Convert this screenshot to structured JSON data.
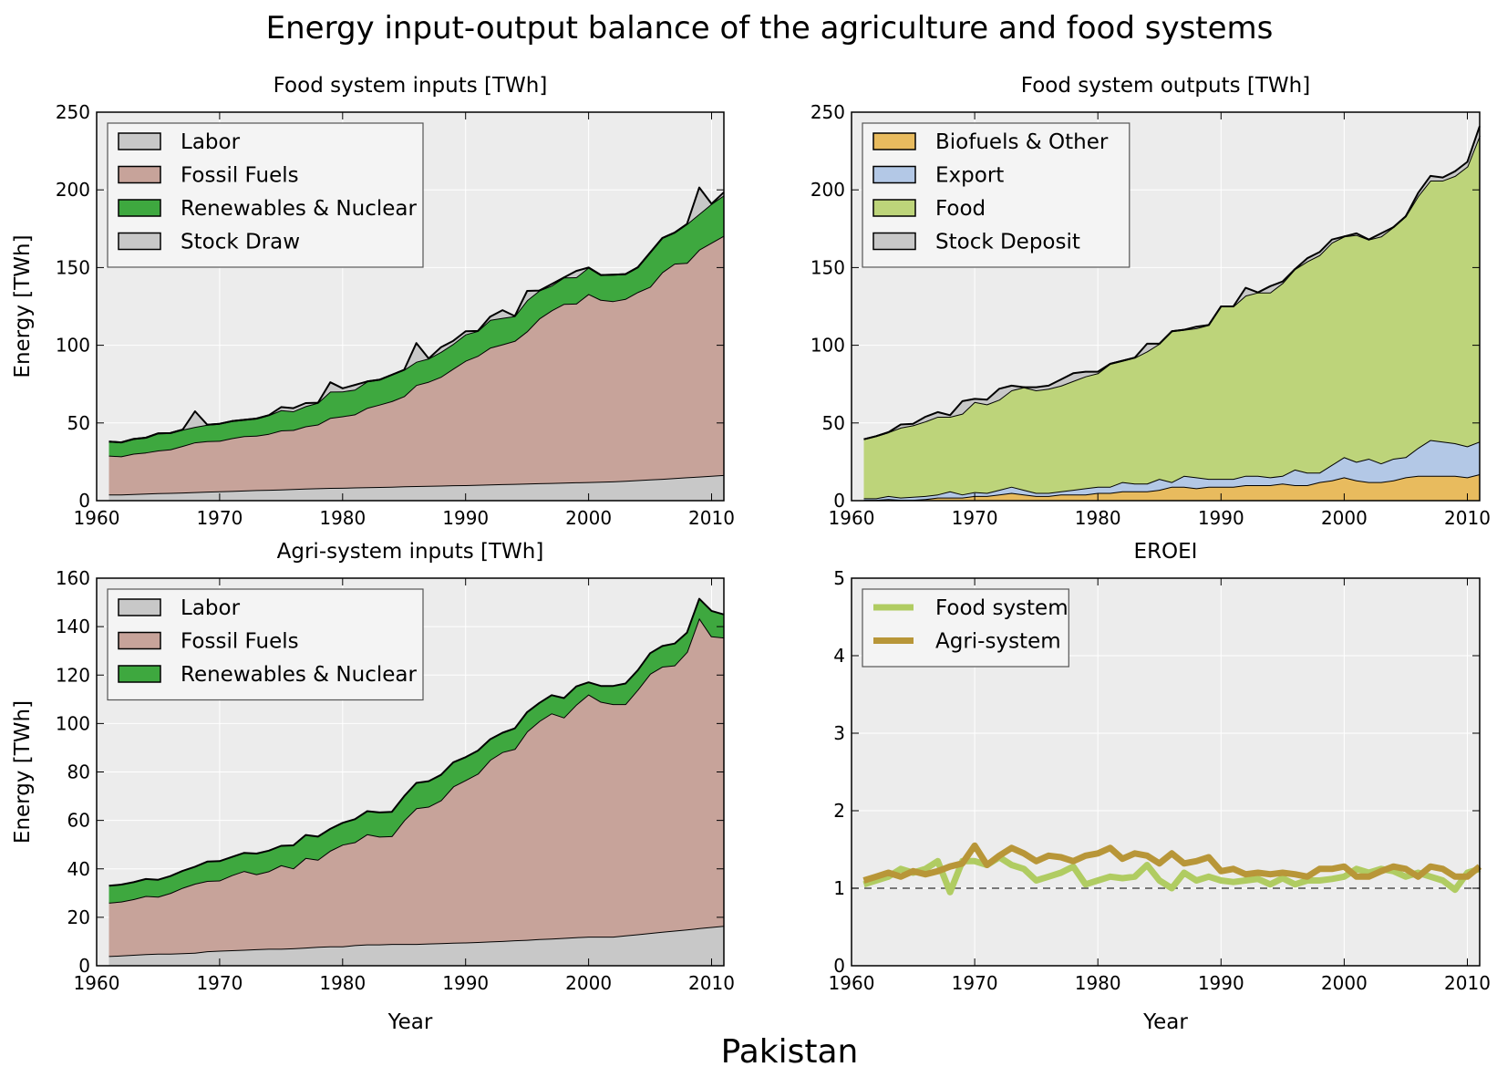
{
  "figure": {
    "title": "Energy input-output balance of the agriculture and food systems",
    "country": "Pakistan"
  },
  "colors": {
    "labor": "#c8c8c8",
    "fossil": "#c7a39a",
    "renew": "#3ea83f",
    "stock": "#c8c8c8",
    "biofuel": "#e8bb5e",
    "export": "#b3c8e6",
    "food": "#bdd47a",
    "eroei_food": "#b0cc62",
    "eroei_agri": "#b89638",
    "axes_bg": "#ececec"
  },
  "chart_data": [
    {
      "type": "area",
      "title": "Food system inputs [TWh]",
      "xlabel": "",
      "ylabel": "Energy [TWh]",
      "xlim": [
        1960,
        2011
      ],
      "ylim": [
        0,
        250
      ],
      "xticks": [
        1960,
        1970,
        1980,
        1990,
        2000,
        2010
      ],
      "yticks": [
        0,
        50,
        100,
        150,
        200,
        250
      ],
      "grid": true,
      "stacked": true,
      "legend_position": "top-left",
      "x": [
        1961,
        1962,
        1963,
        1964,
        1965,
        1966,
        1967,
        1968,
        1969,
        1970,
        1971,
        1972,
        1973,
        1974,
        1975,
        1976,
        1977,
        1978,
        1979,
        1980,
        1981,
        1982,
        1983,
        1984,
        1985,
        1986,
        1987,
        1988,
        1989,
        1990,
        1991,
        1992,
        1993,
        1994,
        1995,
        1996,
        1997,
        1998,
        1999,
        2000,
        2001,
        2002,
        2003,
        2004,
        2005,
        2006,
        2007,
        2008,
        2009,
        2010,
        2011
      ],
      "series": [
        {
          "name": "Labor",
          "color_key": "labor",
          "values": [
            4,
            4,
            4.2,
            4.5,
            4.8,
            5,
            5.2,
            5.5,
            5.8,
            6,
            6.2,
            6.5,
            6.8,
            7,
            7.2,
            7.5,
            7.8,
            8,
            8.2,
            8.3,
            8.5,
            8.7,
            8.8,
            9,
            9.2,
            9.4,
            9.5,
            9.7,
            9.9,
            10,
            10.2,
            10.4,
            10.6,
            10.8,
            11,
            11.2,
            11.4,
            11.6,
            11.8,
            12,
            12.2,
            12.4,
            12.8,
            13.2,
            13.6,
            14,
            14.5,
            15,
            15.5,
            16,
            16.5
          ]
        },
        {
          "name": "Fossil Fuels",
          "color_key": "fossil",
          "values": [
            25,
            24.5,
            26,
            26.5,
            27.5,
            28,
            30,
            32,
            32.5,
            32.5,
            34,
            35,
            35,
            36,
            38,
            38,
            40,
            41,
            45,
            46,
            47,
            51,
            53,
            55,
            58,
            65,
            67,
            70,
            75,
            80,
            83,
            88,
            90,
            92,
            98,
            106,
            111,
            115,
            115,
            121,
            117,
            116,
            117,
            121,
            124,
            133,
            138,
            138,
            146,
            150,
            154
          ]
        },
        {
          "name": "Renewables & Nuclear",
          "color_key": "renew",
          "values": [
            9,
            9,
            9.5,
            9.5,
            11,
            10.5,
            10.5,
            10,
            10.5,
            11,
            11,
            10.5,
            11,
            12,
            13,
            12,
            13,
            14,
            17,
            16,
            16,
            17,
            16,
            17,
            17,
            15,
            15,
            16,
            16,
            17,
            16,
            18,
            17,
            16,
            20,
            18,
            16,
            17,
            17,
            17,
            16,
            17,
            16,
            16,
            22,
            22,
            20,
            25,
            23,
            25,
            26
          ]
        },
        {
          "name": "Stock Draw",
          "color_key": "stock",
          "values": [
            0,
            0,
            0,
            0,
            0,
            0,
            0,
            10,
            0,
            0,
            0,
            0,
            0,
            0,
            2,
            2,
            2,
            0,
            6,
            2,
            3,
            0,
            0,
            0,
            0,
            12,
            0,
            3,
            2,
            2,
            0,
            2,
            5,
            0,
            6,
            0,
            1,
            0,
            4,
            0,
            0,
            0,
            0,
            0,
            0,
            0,
            0,
            0,
            17,
            0,
            2
          ]
        }
      ]
    },
    {
      "type": "area",
      "title": "Food system outputs [TWh]",
      "xlabel": "",
      "ylabel": "",
      "xlim": [
        1960,
        2011
      ],
      "ylim": [
        0,
        250
      ],
      "xticks": [
        1960,
        1970,
        1980,
        1990,
        2000,
        2010
      ],
      "yticks": [
        0,
        50,
        100,
        150,
        200,
        250
      ],
      "grid": true,
      "stacked": true,
      "legend_position": "top-left",
      "x": [
        1961,
        1962,
        1963,
        1964,
        1965,
        1966,
        1967,
        1968,
        1969,
        1970,
        1971,
        1972,
        1973,
        1974,
        1975,
        1976,
        1977,
        1978,
        1979,
        1980,
        1981,
        1982,
        1983,
        1984,
        1985,
        1986,
        1987,
        1988,
        1989,
        1990,
        1991,
        1992,
        1993,
        1994,
        1995,
        1996,
        1997,
        1998,
        1999,
        2000,
        2001,
        2002,
        2003,
        2004,
        2005,
        2006,
        2007,
        2008,
        2009,
        2010,
        2011
      ],
      "series": [
        {
          "name": "Biofuels & Other",
          "color_key": "biofuel",
          "values": [
            0.5,
            0.5,
            1,
            0.5,
            0.5,
            1,
            2,
            2,
            2,
            3,
            3,
            4,
            5,
            4,
            3,
            3,
            4,
            4,
            4,
            5,
            5,
            6,
            6,
            6,
            7,
            9,
            9,
            8,
            9,
            9,
            9,
            10,
            10,
            10,
            11,
            10,
            10,
            12,
            13,
            15,
            13,
            12,
            12,
            13,
            15,
            16,
            16,
            16,
            16,
            15,
            17
          ]
        },
        {
          "name": "Export",
          "color_key": "export",
          "values": [
            1,
            1,
            2,
            1.5,
            2,
            2,
            2,
            4,
            2,
            2.5,
            2,
            3,
            4,
            3,
            2,
            2,
            2,
            3,
            4,
            4,
            4,
            6,
            5,
            5,
            7,
            3,
            7,
            7,
            5,
            5,
            5,
            6,
            6,
            5,
            5,
            10,
            8,
            6,
            10,
            13,
            12,
            15,
            12,
            14,
            13,
            18,
            23,
            22,
            21,
            20,
            21
          ]
        },
        {
          "name": "Food",
          "color_key": "food",
          "values": [
            38,
            40,
            41,
            45,
            46,
            48,
            50,
            48,
            52,
            58,
            57,
            58,
            62,
            66,
            66,
            67,
            68,
            70,
            72,
            73,
            79,
            78,
            81,
            85,
            87,
            97,
            94,
            96,
            99,
            111,
            111,
            116,
            118,
            119,
            124,
            129,
            136,
            140,
            143,
            142,
            146,
            141,
            146,
            149,
            155,
            162,
            167,
            168,
            172,
            180,
            197
          ]
        },
        {
          "name": "Stock Deposit",
          "color_key": "stock",
          "values": [
            0,
            0,
            0,
            2,
            1,
            3,
            3,
            1,
            8,
            2,
            3,
            7,
            3,
            0,
            2,
            2,
            4,
            5,
            3,
            1,
            0,
            0,
            0,
            5,
            0,
            0,
            0,
            1,
            0,
            0,
            0,
            5,
            0,
            4,
            1,
            0,
            2,
            2,
            2,
            0,
            1,
            0,
            2,
            0,
            0,
            2,
            3,
            2,
            3,
            3,
            6
          ]
        }
      ]
    },
    {
      "type": "area",
      "title": "Agri-system inputs [TWh]",
      "xlabel": "Year",
      "ylabel": "Energy [TWh]",
      "xlim": [
        1960,
        2011
      ],
      "ylim": [
        0,
        160
      ],
      "xticks": [
        1960,
        1970,
        1980,
        1990,
        2000,
        2010
      ],
      "yticks": [
        0,
        20,
        40,
        60,
        80,
        100,
        120,
        140,
        160
      ],
      "grid": true,
      "stacked": true,
      "legend_position": "top-left",
      "x": [
        1961,
        1962,
        1963,
        1964,
        1965,
        1966,
        1967,
        1968,
        1969,
        1970,
        1971,
        1972,
        1973,
        1974,
        1975,
        1976,
        1977,
        1978,
        1979,
        1980,
        1981,
        1982,
        1983,
        1984,
        1985,
        1986,
        1987,
        1988,
        1989,
        1990,
        1991,
        1992,
        1993,
        1994,
        1995,
        1996,
        1997,
        1998,
        1999,
        2000,
        2001,
        2002,
        2003,
        2004,
        2005,
        2006,
        2007,
        2008,
        2009,
        2010,
        2011
      ],
      "series": [
        {
          "name": "Labor",
          "color_key": "labor",
          "values": [
            4,
            4.2,
            4.5,
            4.8,
            5,
            5,
            5.2,
            5.4,
            6,
            6.2,
            6.4,
            6.6,
            6.8,
            7,
            7,
            7.2,
            7.5,
            7.8,
            8,
            8,
            8.5,
            8.8,
            8.8,
            9,
            9,
            9,
            9.2,
            9.3,
            9.5,
            9.6,
            9.8,
            10,
            10.2,
            10.5,
            10.7,
            11,
            11.2,
            11.5,
            11.8,
            12,
            12,
            12,
            12.5,
            13,
            13.5,
            14,
            14.5,
            15,
            15.5,
            16,
            16.5
          ]
        },
        {
          "name": "Fossil Fuels",
          "color_key": "fossil",
          "values": [
            22,
            22.3,
            23,
            24,
            23.5,
            25,
            27,
            28.5,
            29,
            29,
            31,
            32.5,
            31,
            32,
            34.5,
            33,
            37,
            36,
            39.5,
            42,
            42.5,
            45.5,
            44.5,
            44.5,
            51,
            56,
            56.5,
            59,
            64.5,
            67,
            69.5,
            75,
            78,
            79,
            86,
            90,
            93,
            91,
            96,
            100,
            97,
            96,
            95.5,
            101,
            107,
            109.5,
            109.5,
            114.5,
            128,
            120,
            119
          ]
        },
        {
          "name": "Renewables & Nuclear",
          "color_key": "renew",
          "values": [
            7,
            7,
            7,
            7,
            7,
            7,
            7,
            7,
            8,
            8,
            7.5,
            7.5,
            8.5,
            8.5,
            8,
            9.5,
            9.5,
            9.5,
            9,
            9,
            9.5,
            9.5,
            10,
            10,
            10,
            10.5,
            10.5,
            10.5,
            10,
            9.5,
            9.5,
            8.5,
            8,
            8.5,
            8,
            7.5,
            7.5,
            8,
            7.5,
            5,
            6.5,
            7.5,
            8.5,
            8,
            8.5,
            8.5,
            9,
            8,
            8,
            10.5,
            9.5
          ]
        }
      ]
    },
    {
      "type": "line",
      "title": "EROEI",
      "xlabel": "Year",
      "ylabel": "",
      "xlim": [
        1960,
        2011
      ],
      "ylim": [
        0,
        5
      ],
      "xticks": [
        1960,
        1970,
        1980,
        1990,
        2000,
        2010
      ],
      "yticks": [
        0,
        1,
        2,
        3,
        4,
        5
      ],
      "grid": true,
      "legend_position": "top-left",
      "reference_line": 1,
      "x": [
        1961,
        1962,
        1963,
        1964,
        1965,
        1966,
        1967,
        1968,
        1969,
        1970,
        1971,
        1972,
        1973,
        1974,
        1975,
        1976,
        1977,
        1978,
        1979,
        1980,
        1981,
        1982,
        1983,
        1984,
        1985,
        1986,
        1987,
        1988,
        1989,
        1990,
        1991,
        1992,
        1993,
        1994,
        1995,
        1996,
        1997,
        1998,
        1999,
        2000,
        2001,
        2002,
        2003,
        2004,
        2005,
        2006,
        2007,
        2008,
        2009,
        2010,
        2011
      ],
      "series": [
        {
          "name": "Food system",
          "color_key": "eroei_food",
          "values": [
            1.05,
            1.1,
            1.15,
            1.25,
            1.2,
            1.25,
            1.35,
            0.95,
            1.35,
            1.35,
            1.3,
            1.4,
            1.3,
            1.25,
            1.1,
            1.15,
            1.2,
            1.28,
            1.05,
            1.1,
            1.15,
            1.13,
            1.15,
            1.3,
            1.1,
            1.0,
            1.2,
            1.1,
            1.15,
            1.1,
            1.08,
            1.1,
            1.12,
            1.05,
            1.13,
            1.05,
            1.1,
            1.1,
            1.12,
            1.15,
            1.25,
            1.2,
            1.25,
            1.22,
            1.15,
            1.2,
            1.15,
            1.1,
            0.98,
            1.2,
            1.25
          ]
        },
        {
          "name": "Agri-system",
          "color_key": "eroei_agri",
          "values": [
            1.1,
            1.15,
            1.2,
            1.15,
            1.22,
            1.18,
            1.22,
            1.28,
            1.32,
            1.55,
            1.3,
            1.42,
            1.52,
            1.45,
            1.35,
            1.42,
            1.4,
            1.35,
            1.42,
            1.45,
            1.52,
            1.38,
            1.45,
            1.42,
            1.32,
            1.45,
            1.32,
            1.35,
            1.4,
            1.22,
            1.25,
            1.18,
            1.2,
            1.18,
            1.2,
            1.18,
            1.15,
            1.25,
            1.25,
            1.28,
            1.15,
            1.15,
            1.22,
            1.28,
            1.25,
            1.15,
            1.28,
            1.25,
            1.15,
            1.15,
            1.28
          ]
        }
      ]
    }
  ]
}
